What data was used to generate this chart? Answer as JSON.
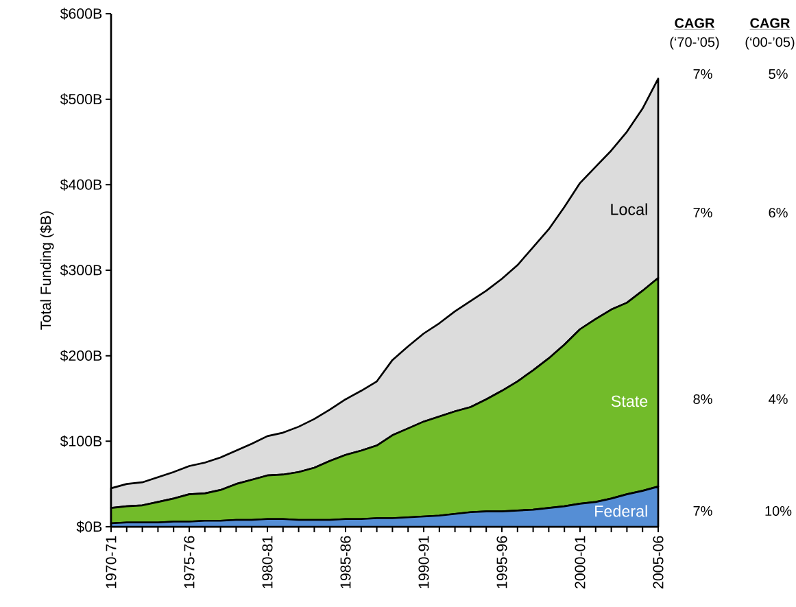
{
  "chart_data": {
    "type": "area",
    "stacked": true,
    "ylabel": "Total Funding ($B)",
    "categories": [
      "1970-71",
      null,
      null,
      null,
      null,
      "1975-76",
      null,
      null,
      null,
      null,
      "1980-81",
      null,
      null,
      null,
      null,
      "1985-86",
      null,
      null,
      null,
      null,
      "1990-91",
      null,
      null,
      null,
      null,
      "1995-96",
      null,
      null,
      null,
      null,
      "2000-01",
      null,
      null,
      null,
      null,
      "2005-06"
    ],
    "series": [
      {
        "name": "Federal",
        "color": "#558ed5",
        "values": [
          4,
          5,
          5,
          5,
          6,
          6,
          7,
          7,
          8,
          8,
          9,
          9,
          8,
          8,
          8,
          9,
          9,
          10,
          10,
          11,
          12,
          13,
          15,
          17,
          18,
          18,
          19,
          20,
          22,
          24,
          27,
          29,
          33,
          38,
          42,
          47
        ]
      },
      {
        "name": "State",
        "color": "#72bb2a",
        "values": [
          18,
          19,
          20,
          24,
          27,
          32,
          32,
          36,
          42,
          47,
          51,
          52,
          56,
          61,
          69,
          75,
          80,
          85,
          97,
          104,
          111,
          116,
          120,
          123,
          131,
          141,
          151,
          163,
          175,
          189,
          204,
          214,
          221,
          224,
          234,
          244
        ]
      },
      {
        "name": "Local",
        "color": "#dcdcdc",
        "values": [
          23,
          26,
          27,
          29,
          31,
          33,
          36,
          38,
          39,
          42,
          46,
          49,
          53,
          57,
          60,
          65,
          70,
          75,
          88,
          96,
          103,
          109,
          117,
          124,
          127,
          131,
          136,
          144,
          151,
          161,
          171,
          178,
          186,
          200,
          213,
          233
        ]
      }
    ],
    "ylim": [
      0,
      600
    ],
    "yticks": [
      {
        "value": 0,
        "label": "$0B"
      },
      {
        "value": 100,
        "label": "$100B"
      },
      {
        "value": 200,
        "label": "$200B"
      },
      {
        "value": 300,
        "label": "$300B"
      },
      {
        "value": 400,
        "label": "$400B"
      },
      {
        "value": 500,
        "label": "$500B"
      },
      {
        "value": 600,
        "label": "$600B"
      }
    ],
    "annotations": [
      "CAGR",
      "(‘70-’05)",
      "CAGR",
      "(‘00-’05)",
      "7%",
      "5%",
      "7%",
      "6%",
      "8%",
      "4%",
      "7%",
      "10%"
    ]
  }
}
